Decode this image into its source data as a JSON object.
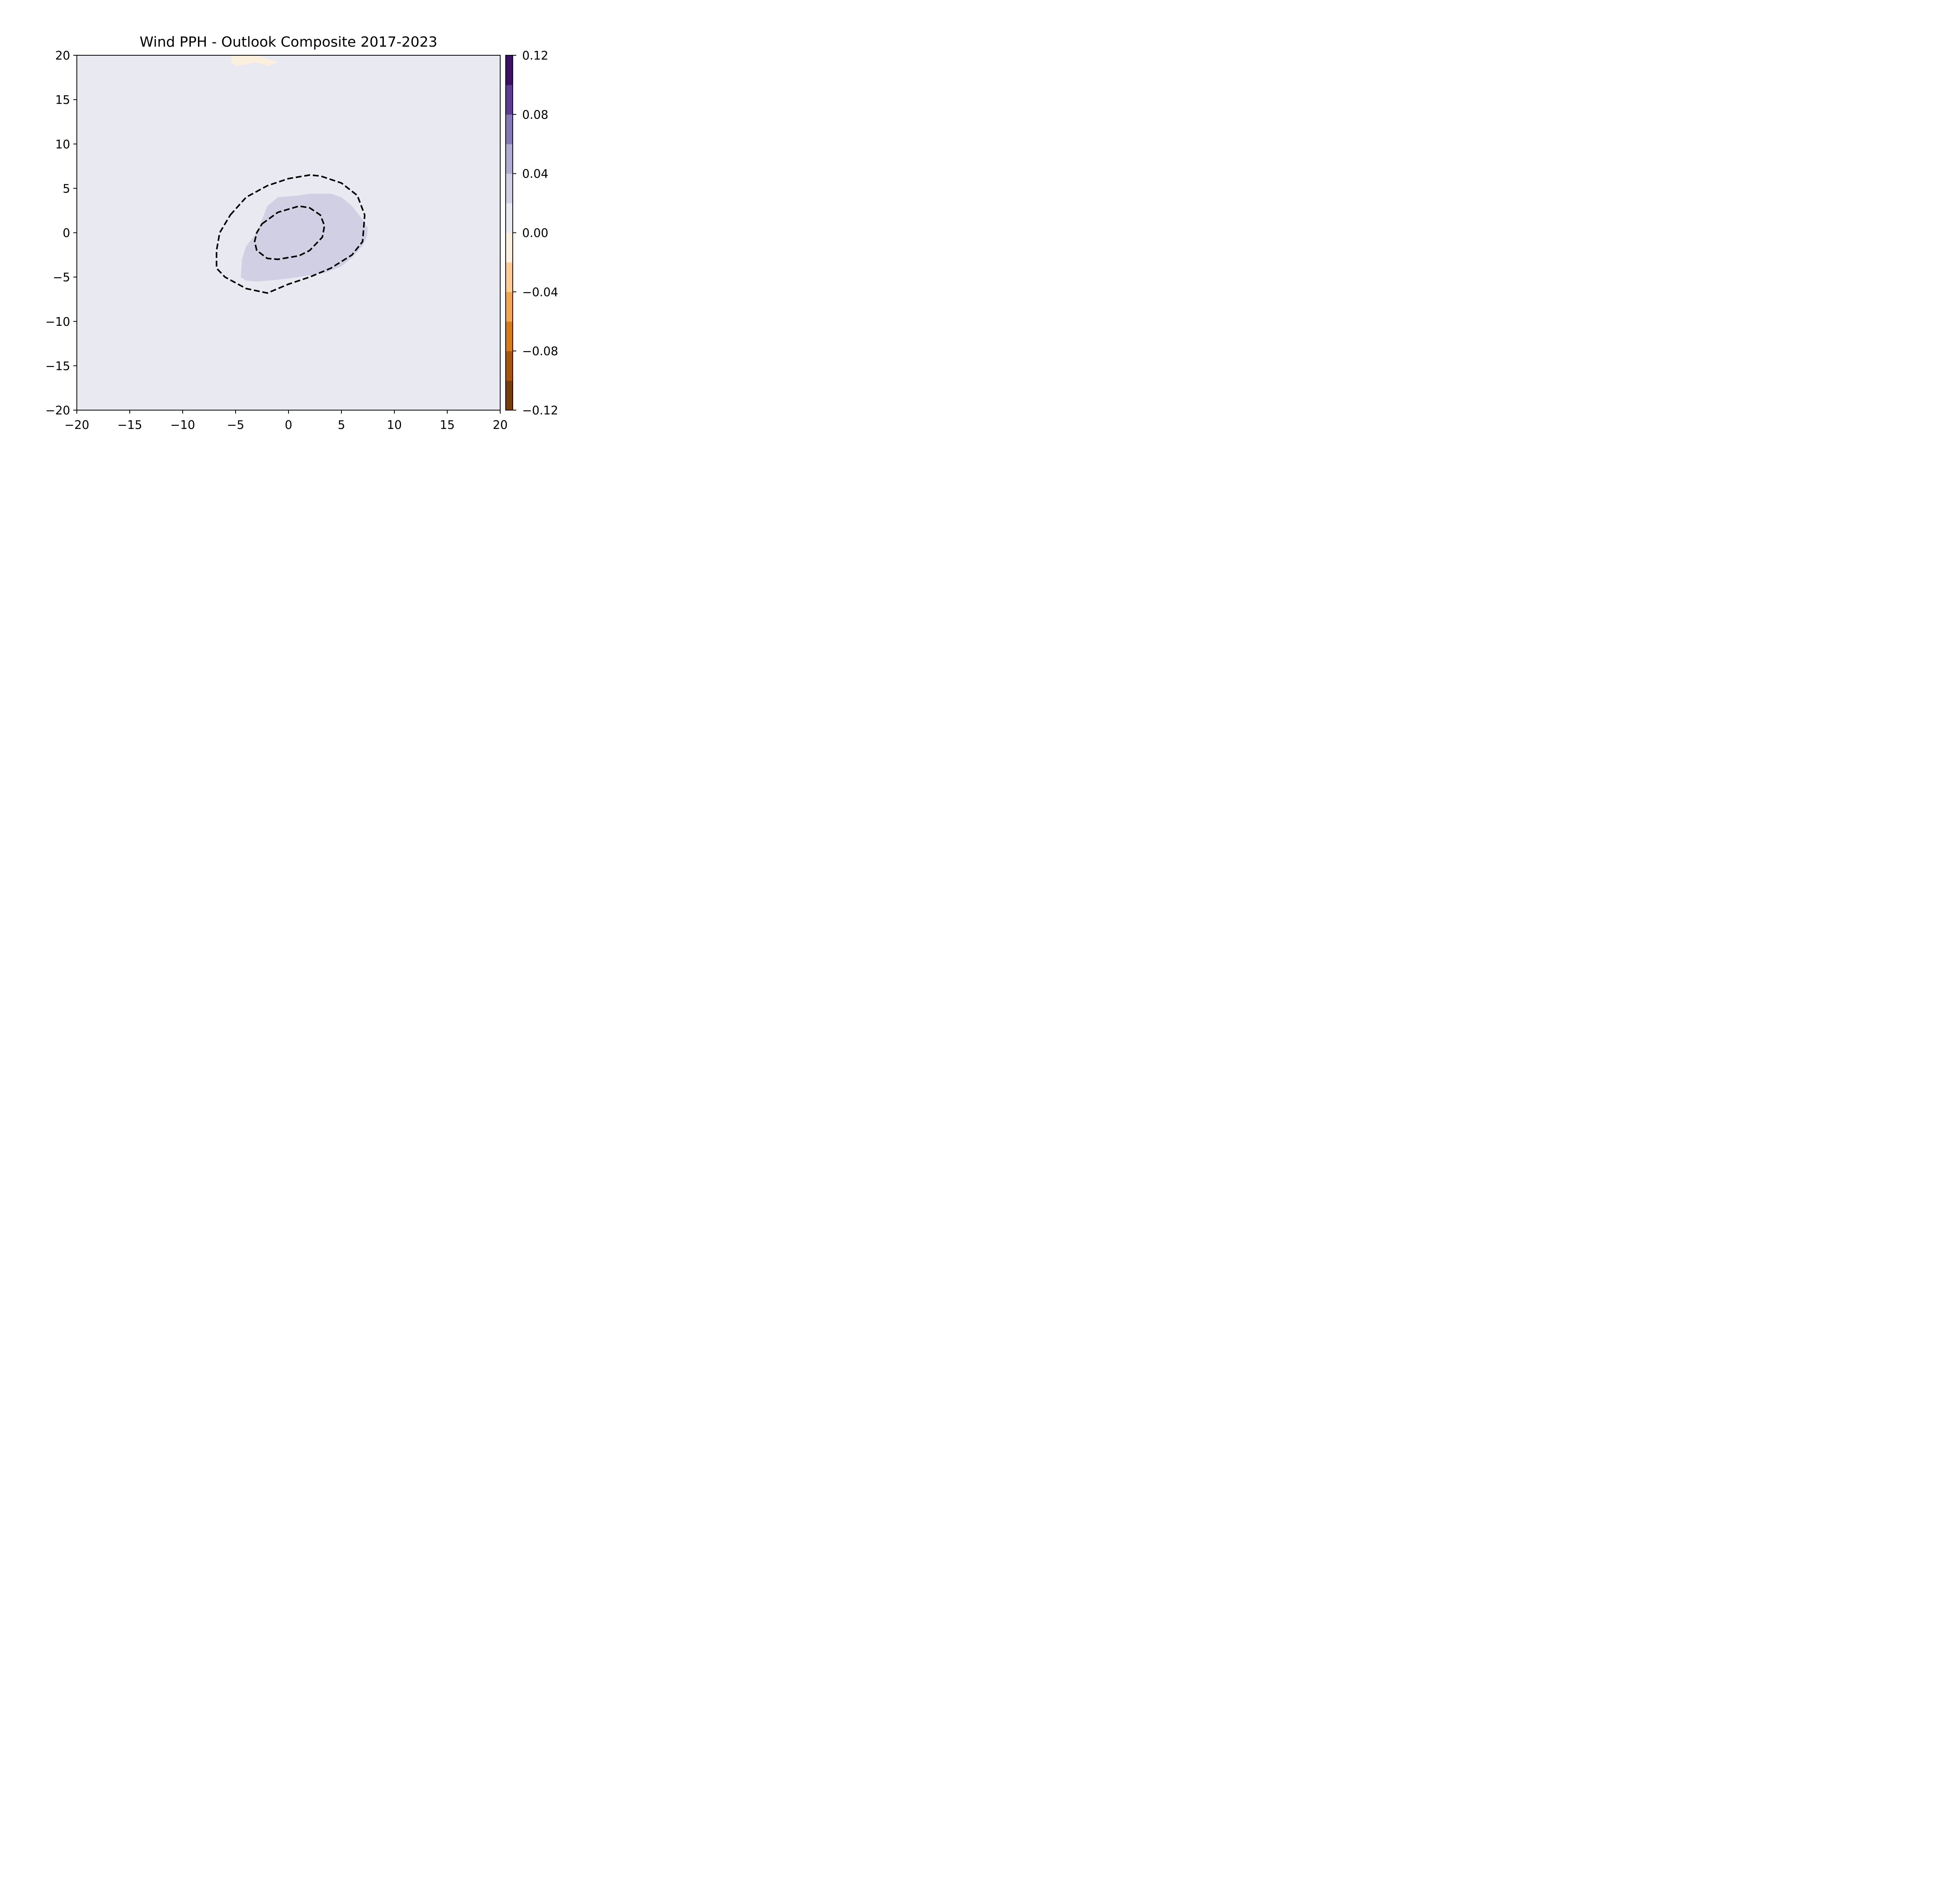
{
  "chart_data": {
    "type": "contour",
    "title": "Wind PPH - Outlook Composite 2017-2023",
    "xlabel": "",
    "ylabel": "",
    "xlim": [
      -20,
      20
    ],
    "ylim": [
      -20,
      20
    ],
    "x_ticks": [
      -20,
      -15,
      -10,
      -5,
      0,
      5,
      10,
      15,
      20
    ],
    "y_ticks": [
      -20,
      -15,
      -10,
      -5,
      0,
      5,
      10,
      15,
      20
    ],
    "x_tick_labels": [
      "−20",
      "−15",
      "−10",
      "−5",
      "0",
      "5",
      "10",
      "15",
      "20"
    ],
    "y_tick_labels": [
      "−20",
      "−15",
      "−10",
      "−5",
      "0",
      "5",
      "10",
      "15",
      "20"
    ],
    "grid": false,
    "background_color": "#e9e9f2",
    "filled_regions": [
      {
        "level_range": [
          0.02,
          0.04
        ],
        "color": "#d0cfe4",
        "points": [
          [
            -2.0,
            3.0
          ],
          [
            -1.0,
            4.0
          ],
          [
            1.0,
            4.2
          ],
          [
            2.0,
            4.4
          ],
          [
            4.0,
            4.4
          ],
          [
            5.0,
            4.0
          ],
          [
            6.0,
            3.0
          ],
          [
            7.0,
            1.5
          ],
          [
            7.5,
            0.5
          ],
          [
            7.4,
            -0.5
          ],
          [
            7.0,
            -1.5
          ],
          [
            6.0,
            -2.8
          ],
          [
            5.0,
            -3.8
          ],
          [
            3.5,
            -4.5
          ],
          [
            1.0,
            -5.0
          ],
          [
            -1.0,
            -5.3
          ],
          [
            -3.0,
            -5.5
          ],
          [
            -4.0,
            -5.4
          ],
          [
            -4.5,
            -5.0
          ],
          [
            -4.4,
            -3.0
          ],
          [
            -4.0,
            -1.5
          ],
          [
            -3.0,
            0.0
          ],
          [
            -2.5,
            1.5
          ]
        ]
      },
      {
        "level_range": [
          -0.02,
          0.0
        ],
        "color": "#fbefde",
        "points": [
          [
            -5.4,
            20.0
          ],
          [
            -3.0,
            20.0
          ],
          [
            -2.0,
            19.6
          ],
          [
            -1.0,
            19.2
          ],
          [
            -2.0,
            18.8
          ],
          [
            -3.0,
            19.2
          ],
          [
            -4.0,
            19.0
          ],
          [
            -5.0,
            18.8
          ],
          [
            -5.4,
            19.2
          ]
        ]
      }
    ],
    "contour_lines": [
      {
        "style": "dashed",
        "color": "#000000",
        "points": [
          [
            -5.5,
            2.0
          ],
          [
            -4.0,
            4.0
          ],
          [
            -2.0,
            5.3
          ],
          [
            0.0,
            6.1
          ],
          [
            2.0,
            6.5
          ],
          [
            3.0,
            6.4
          ],
          [
            5.0,
            5.6
          ],
          [
            6.5,
            4.2
          ],
          [
            7.2,
            2.0
          ],
          [
            7.0,
            -1.0
          ],
          [
            6.0,
            -2.5
          ],
          [
            4.0,
            -4.0
          ],
          [
            2.0,
            -5.0
          ],
          [
            0.0,
            -5.8
          ],
          [
            -2.0,
            -6.8
          ],
          [
            -4.0,
            -6.3
          ],
          [
            -6.0,
            -5.0
          ],
          [
            -6.8,
            -4.0
          ],
          [
            -6.8,
            -2.0
          ],
          [
            -6.5,
            0.0
          ],
          [
            -5.5,
            2.0
          ]
        ]
      },
      {
        "style": "dashed",
        "color": "#000000",
        "points": [
          [
            -2.5,
            1.0
          ],
          [
            -1.0,
            2.3
          ],
          [
            1.0,
            3.0
          ],
          [
            2.0,
            2.8
          ],
          [
            3.0,
            2.0
          ],
          [
            3.4,
            0.8
          ],
          [
            3.2,
            -0.5
          ],
          [
            2.0,
            -2.0
          ],
          [
            1.0,
            -2.6
          ],
          [
            -1.0,
            -3.0
          ],
          [
            -2.0,
            -2.9
          ],
          [
            -3.0,
            -2.0
          ],
          [
            -3.2,
            -1.0
          ],
          [
            -3.0,
            0.0
          ],
          [
            -2.5,
            1.0
          ]
        ]
      }
    ],
    "colorbar": {
      "min": -0.12,
      "max": 0.12,
      "location": "right",
      "levels": [
        -0.12,
        -0.1,
        -0.08,
        -0.06,
        -0.04,
        -0.02,
        0.0,
        0.02,
        0.04,
        0.06,
        0.08,
        0.1,
        0.12
      ],
      "colors": [
        "#7a3d08",
        "#a9540c",
        "#d77a17",
        "#f3a550",
        "#fdcd8f",
        "#fbefde",
        "#e9e9f2",
        "#d0cfe4",
        "#afabd1",
        "#8479b5",
        "#5e3b94",
        "#3e0f67"
      ],
      "ticks": [
        -0.12,
        -0.08,
        -0.04,
        0.0,
        0.04,
        0.08,
        0.12
      ],
      "tick_labels": [
        "−0.12",
        "−0.08",
        "−0.04",
        "0.00",
        "0.04",
        "0.08",
        "0.12"
      ]
    }
  }
}
